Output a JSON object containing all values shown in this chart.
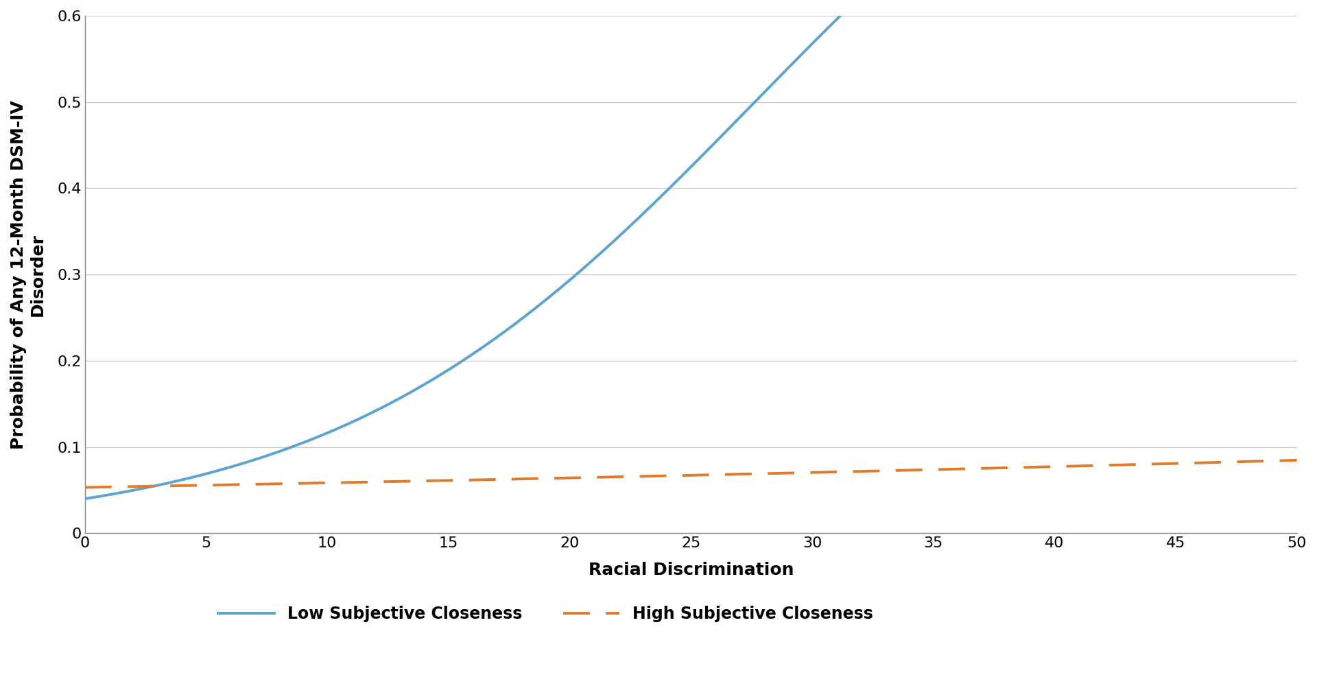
{
  "xlabel": "Racial Discrimination",
  "ylabel": "Probability of Any 12-Month DSM-IV\nDisorder",
  "xlim": [
    0,
    50
  ],
  "ylim": [
    0,
    0.6
  ],
  "xticks": [
    0,
    5,
    10,
    15,
    20,
    25,
    30,
    35,
    40,
    45,
    50
  ],
  "yticks": [
    0,
    0.1,
    0.2,
    0.3,
    0.4,
    0.5,
    0.6
  ],
  "low_color": "#5BA3D0",
  "high_color": "#E07B2A",
  "low_label": "Low Subjective Closeness",
  "high_label": "High Subjective Closeness",
  "low_intercept": -3.178,
  "low_slope": 0.115,
  "high_intercept": -2.88,
  "high_slope": 0.01,
  "background_color": "#ffffff",
  "grid_color": "#c8c8c8",
  "label_fontsize": 18,
  "tick_fontsize": 16,
  "legend_fontsize": 17,
  "line_width": 2.8
}
